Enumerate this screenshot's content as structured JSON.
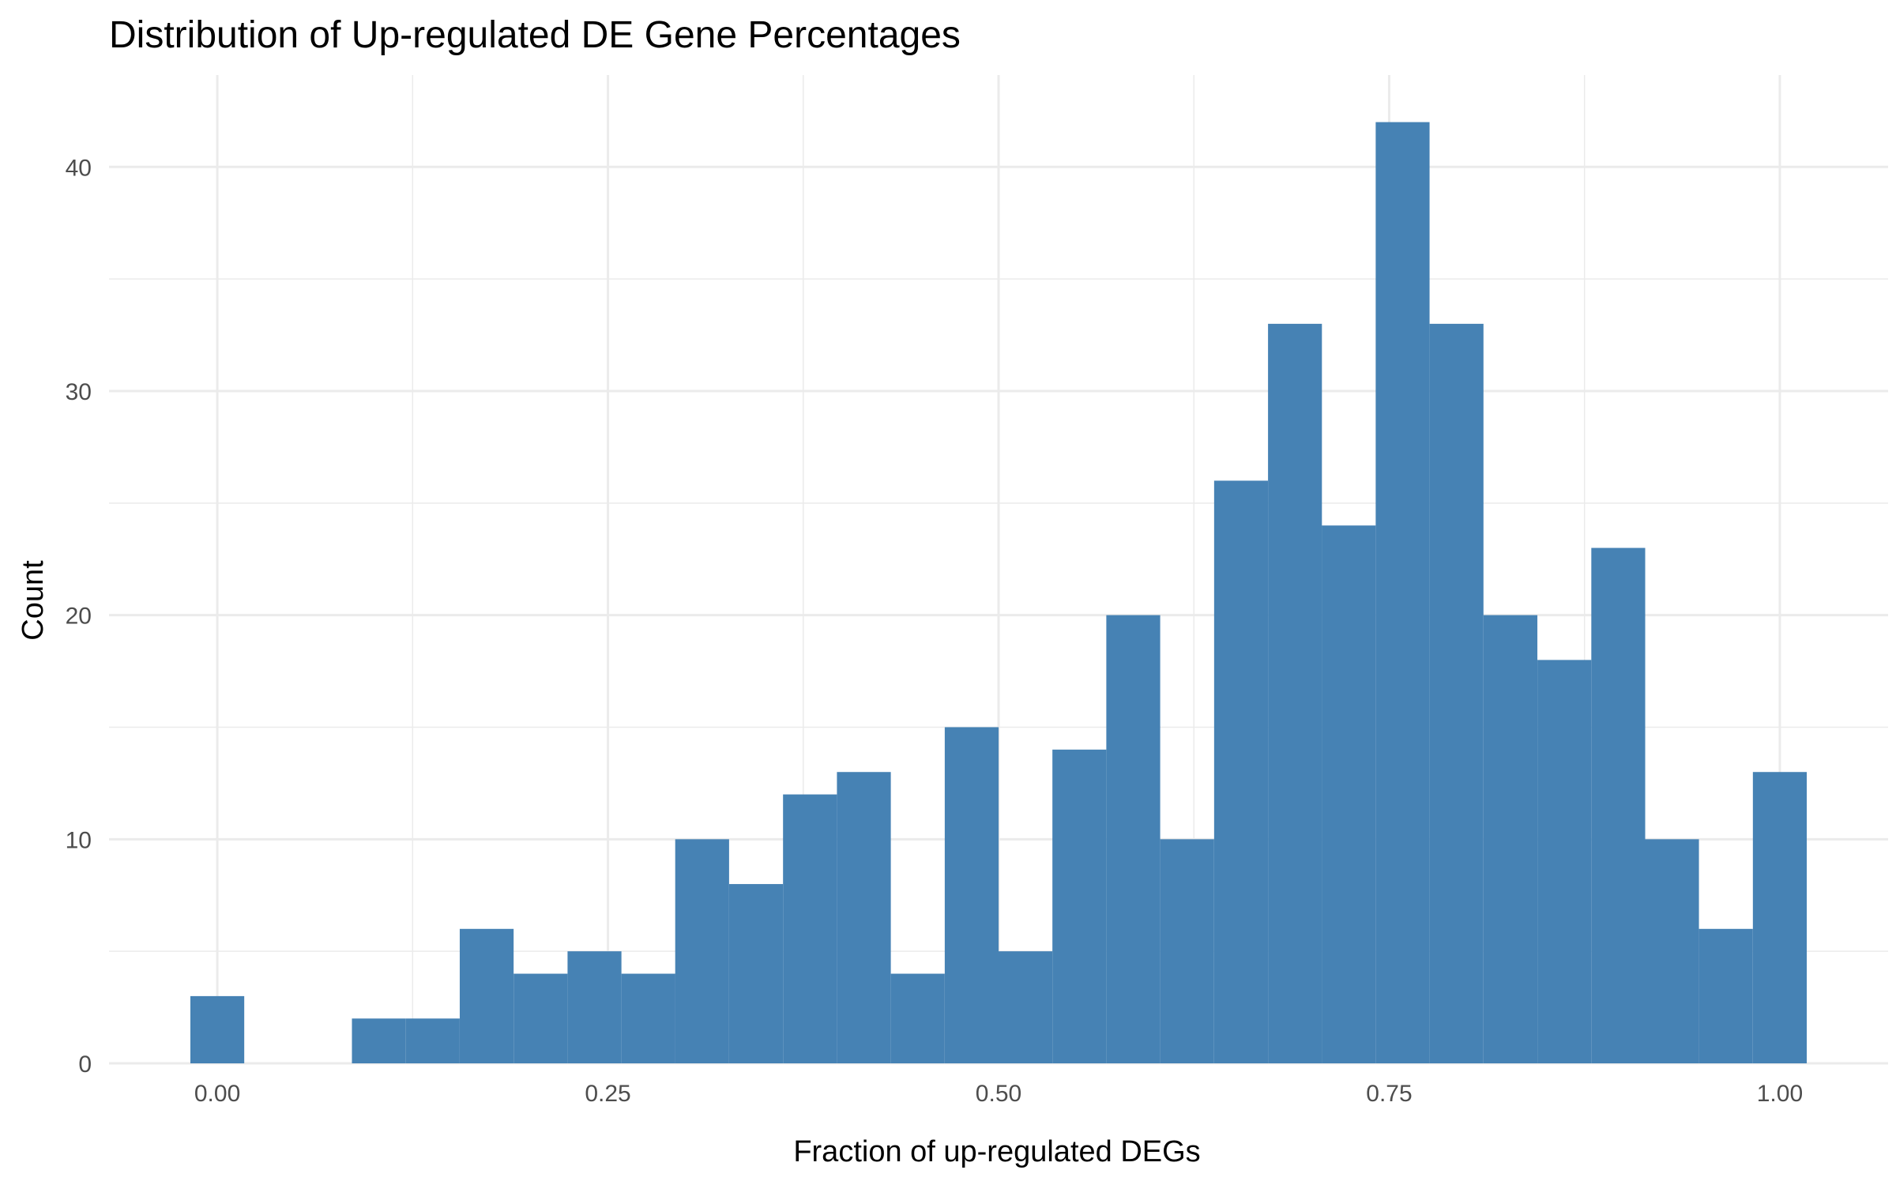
{
  "chart_data": {
    "type": "bar",
    "title": "Distribution of Up-regulated DE Gene Percentages",
    "xlabel": "Fraction of up-regulated DEGs",
    "ylabel": "Count",
    "xlim": [
      -0.0693,
      1.0693
    ],
    "ylim": [
      0,
      44.1
    ],
    "x_ticks": [
      0.0,
      0.25,
      0.5,
      0.75,
      1.0
    ],
    "x_tick_labels": [
      "0.00",
      "0.25",
      "0.50",
      "0.75",
      "1.00"
    ],
    "y_ticks": [
      0,
      10,
      20,
      30,
      40
    ],
    "y_tick_labels": [
      "0",
      "10",
      "20",
      "30",
      "40"
    ],
    "grid": true,
    "legend": "none",
    "bar_color": "#4682B4",
    "bin_width": 0.03448,
    "bin_centers": [
      0.0,
      0.0345,
      0.069,
      0.1034,
      0.1379,
      0.1724,
      0.2069,
      0.2414,
      0.2759,
      0.3103,
      0.3448,
      0.3793,
      0.4138,
      0.4483,
      0.4828,
      0.5172,
      0.5517,
      0.5862,
      0.6207,
      0.6552,
      0.6897,
      0.7241,
      0.7586,
      0.7931,
      0.8276,
      0.8621,
      0.8966,
      0.931,
      0.9655,
      1.0
    ],
    "values": [
      3,
      0,
      0,
      2,
      2,
      6,
      4,
      5,
      4,
      10,
      8,
      12,
      13,
      4,
      15,
      5,
      14,
      20,
      10,
      26,
      33,
      24,
      42,
      33,
      20,
      18,
      23,
      10,
      6,
      13
    ]
  }
}
